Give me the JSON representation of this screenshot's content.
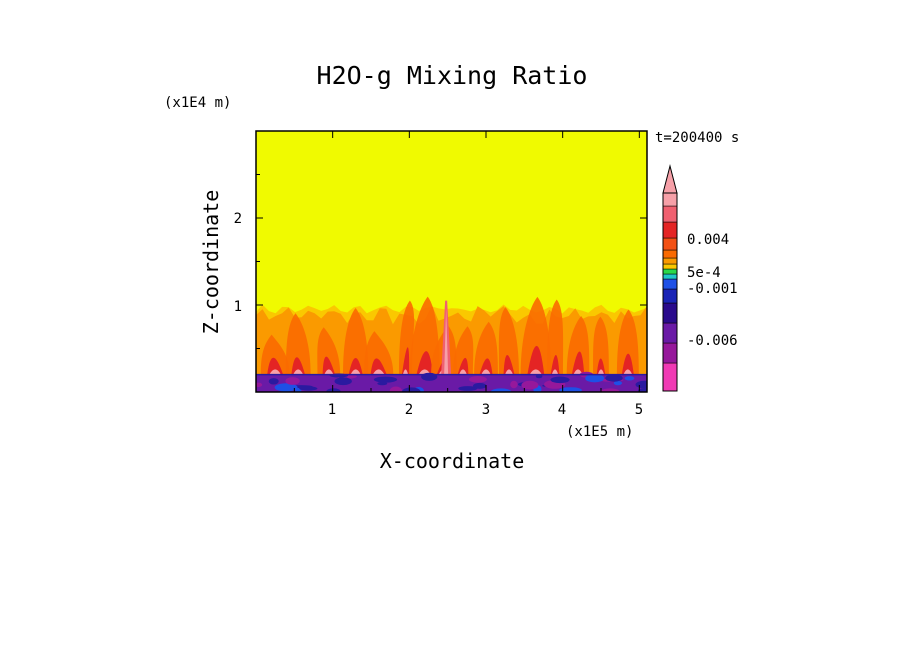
{
  "chart_data": {
    "type": "heatmap",
    "title": "H2O-g Mixing Ratio",
    "xlabel": "X-coordinate",
    "ylabel": "Z-coordinate",
    "x_unit": "(x1E5 m)",
    "y_unit": "(x1E4 m)",
    "time_label": "t=200400 s",
    "xlim": [
      0,
      5.1
    ],
    "ylim": [
      0,
      3
    ],
    "x_ticks": [
      "1",
      "2",
      "3",
      "4",
      "5"
    ],
    "y_ticks": [
      "1",
      "2"
    ],
    "colorbar": {
      "labels": [
        "0.004",
        "5e-4",
        "-0.001",
        "-0.006"
      ],
      "label_values": [
        0.004,
        0.0005,
        -0.001,
        -0.006
      ],
      "levels": [
        {
          "color": "#f03ab4",
          "value": -0.009
        },
        {
          "color": "#96189b",
          "value": -0.007
        },
        {
          "color": "#6a1aa6",
          "value": -0.005
        },
        {
          "color": "#2a0a8c",
          "value": -0.003
        },
        {
          "color": "#1a24b6",
          "value": -0.002
        },
        {
          "color": "#1e50e6",
          "value": -0.0012
        },
        {
          "color": "#20c8c8",
          "value": -0.0006
        },
        {
          "color": "#2ad84a",
          "value": -0.0002
        },
        {
          "color": "#fac800",
          "value": 0.0002
        },
        {
          "color": "#fa9a00",
          "value": 0.0006
        },
        {
          "color": "#fa6a00",
          "value": 0.001
        },
        {
          "color": "#f25014",
          "value": 0.002
        },
        {
          "color": "#e42424",
          "value": 0.0035
        },
        {
          "color": "#f06070",
          "value": 0.005
        },
        {
          "color": "#f6a0a8",
          "value": 0.007
        }
      ],
      "extend_max": true
    },
    "field_summary": {
      "background_color": "#f0fa00",
      "note_layers": [
        {
          "z_range": [
            0,
            0.2
          ],
          "level": "negative",
          "color": "#2a1aa0"
        },
        {
          "z_range": [
            0.2,
            1.0
          ],
          "level": "positive",
          "color": "#fa9a00"
        }
      ]
    }
  }
}
